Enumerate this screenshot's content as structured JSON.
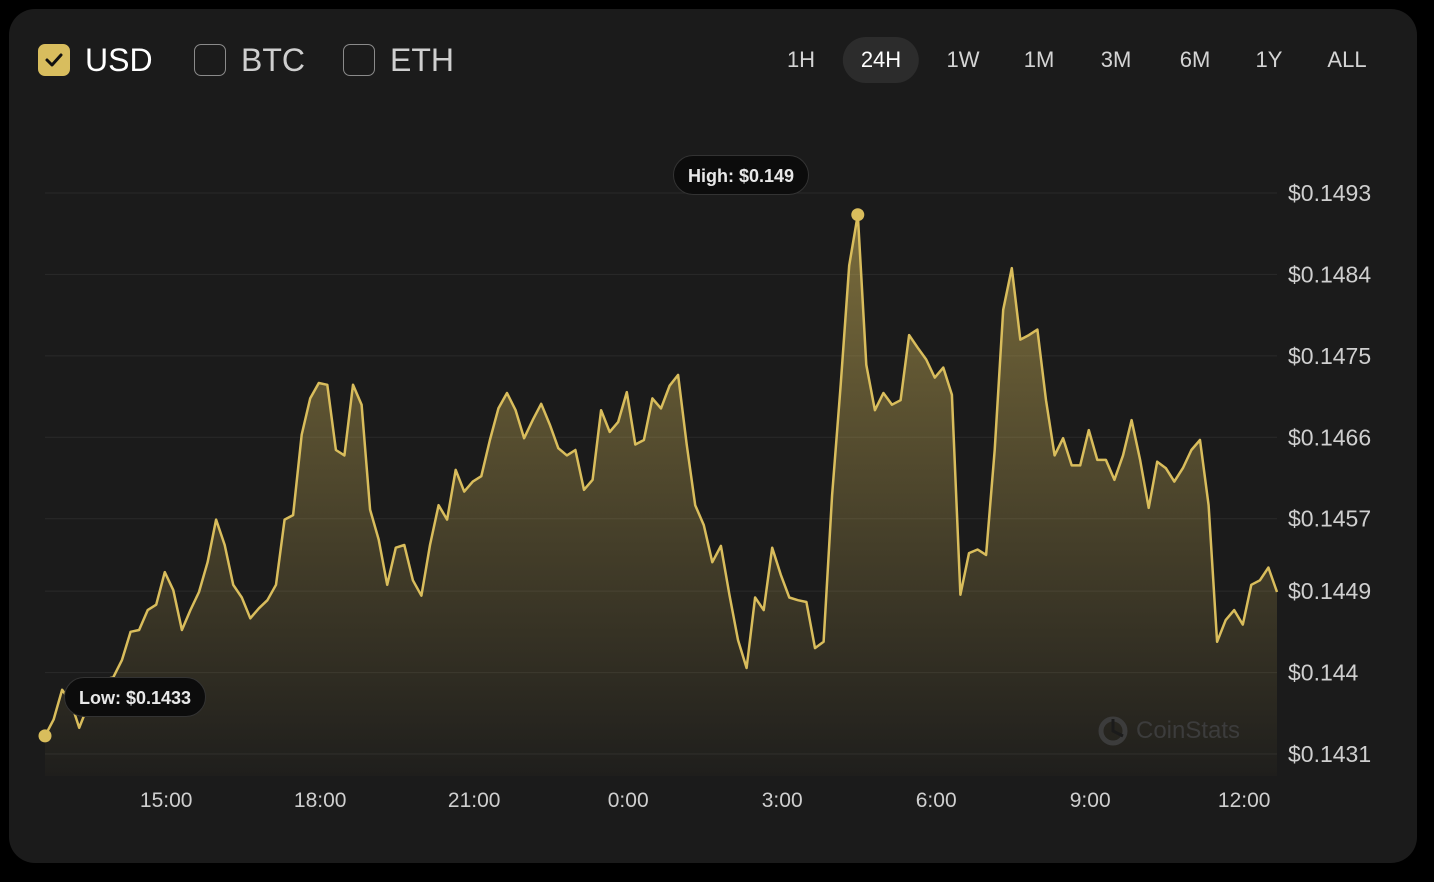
{
  "currencies": [
    {
      "label": "USD",
      "checked": true
    },
    {
      "label": "BTC",
      "checked": false
    },
    {
      "label": "ETH",
      "checked": false
    }
  ],
  "timeframes": [
    {
      "label": "1H"
    },
    {
      "label": "24H",
      "selected": true
    },
    {
      "label": "1W"
    },
    {
      "label": "1M"
    },
    {
      "label": "3M"
    },
    {
      "label": "6M"
    },
    {
      "label": "1Y"
    },
    {
      "label": "ALL"
    }
  ],
  "colors": {
    "line": "#d9bd5c",
    "accent": "#d8bd5e",
    "background": "#1b1b1b"
  },
  "watermark": "CoinStats",
  "chart_data": {
    "type": "area",
    "ylim": [
      0.1431,
      0.1493
    ],
    "y_ticks": [
      "$0.1493",
      "$0.1484",
      "$0.1475",
      "$0.1466",
      "$0.1457",
      "$0.1449",
      "$0.144",
      "$0.1431"
    ],
    "y_tick_values": [
      0.1493,
      0.1484,
      0.1475,
      0.1466,
      0.1457,
      0.1449,
      0.144,
      0.1431
    ],
    "x_ticks": [
      "15:00",
      "18:00",
      "21:00",
      "0:00",
      "3:00",
      "6:00",
      "9:00",
      "12:00"
    ],
    "grid": "horizontal",
    "annotations": {
      "high": {
        "label": "High: $0.149",
        "value": 0.14906
      },
      "low": {
        "label": "Low: $0.1433",
        "value": 0.1433
      }
    },
    "x": [
      "12:36",
      "12:46",
      "12:56",
      "13:06",
      "13:16",
      "13:26",
      "13:36",
      "13:46",
      "13:56",
      "14:06",
      "14:16",
      "14:26",
      "14:36",
      "14:46",
      "14:56",
      "15:06",
      "15:16",
      "15:26",
      "15:36",
      "15:46",
      "15:56",
      "16:06",
      "16:16",
      "16:26",
      "16:36",
      "16:46",
      "16:56",
      "17:06",
      "17:16",
      "17:26",
      "17:36",
      "17:46",
      "17:56",
      "18:06",
      "18:16",
      "18:26",
      "18:36",
      "18:46",
      "18:56",
      "19:06",
      "19:16",
      "19:26",
      "19:36",
      "19:46",
      "19:56",
      "20:06",
      "20:16",
      "20:26",
      "20:36",
      "20:46",
      "20:56",
      "21:06",
      "21:16",
      "21:26",
      "21:36",
      "21:46",
      "21:56",
      "22:06",
      "22:16",
      "22:26",
      "22:36",
      "22:46",
      "22:56",
      "23:06",
      "23:16",
      "23:26",
      "23:36",
      "23:46",
      "23:56",
      "0:06",
      "0:16",
      "0:26",
      "0:36",
      "0:46",
      "0:56",
      "1:06",
      "1:16",
      "1:26",
      "1:36",
      "1:46",
      "1:56",
      "2:06",
      "2:16",
      "2:26",
      "2:36",
      "2:46",
      "2:56",
      "3:06",
      "3:16",
      "3:26",
      "3:36",
      "3:46",
      "3:56",
      "4:06",
      "4:16",
      "4:26",
      "4:36",
      "4:46",
      "4:56",
      "5:06",
      "5:16",
      "5:26",
      "5:36",
      "5:46",
      "5:56",
      "6:06",
      "6:16",
      "6:26",
      "6:36",
      "6:46",
      "6:56",
      "7:06",
      "7:16",
      "7:26",
      "7:36",
      "7:46",
      "7:56",
      "8:06",
      "8:16",
      "8:26",
      "8:36",
      "8:46",
      "8:56",
      "9:06",
      "9:16",
      "9:26",
      "9:36",
      "9:46",
      "9:56",
      "10:06",
      "10:16",
      "10:26",
      "10:36",
      "10:46",
      "10:56",
      "11:06",
      "11:16",
      "11:26",
      "11:36",
      "11:46",
      "11:56",
      "12:06",
      "12:16",
      "12:26",
      "12:36"
    ],
    "series": [
      {
        "values": [
          0.1433,
          0.14348,
          0.14381,
          0.14368,
          0.14339,
          0.14363,
          0.14376,
          0.14392,
          0.14395,
          0.14414,
          0.14445,
          0.14447,
          0.14469,
          0.14475,
          0.14511,
          0.14491,
          0.14447,
          0.14469,
          0.14489,
          0.14522,
          0.14569,
          0.14541,
          0.14497,
          0.14483,
          0.1446,
          0.14471,
          0.1448,
          0.14497,
          0.14569,
          0.14574,
          0.14663,
          0.14703,
          0.1472,
          0.14718,
          0.14646,
          0.1464,
          0.14718,
          0.14696,
          0.1458,
          0.14547,
          0.14497,
          0.14538,
          0.14541,
          0.14502,
          0.14485,
          0.14541,
          0.14585,
          0.14569,
          0.14624,
          0.146,
          0.14611,
          0.14617,
          0.14657,
          0.14692,
          0.14709,
          0.1469,
          0.14659,
          0.14679,
          0.14697,
          0.14674,
          0.14648,
          0.1464,
          0.14646,
          0.14602,
          0.14613,
          0.1469,
          0.14666,
          0.14677,
          0.1471,
          0.14652,
          0.14657,
          0.14703,
          0.14692,
          0.14717,
          0.14729,
          0.14652,
          0.14585,
          0.14563,
          0.14522,
          0.1454,
          0.14486,
          0.14436,
          0.14405,
          0.14483,
          0.14469,
          0.14538,
          0.14508,
          0.14483,
          0.1448,
          0.14478,
          0.14427,
          0.14434,
          0.14596,
          0.14718,
          0.1485,
          0.14906,
          0.1474,
          0.1469,
          0.14709,
          0.14696,
          0.14701,
          0.14773,
          0.14759,
          0.14746,
          0.14726,
          0.14737,
          0.14707,
          0.14486,
          0.14532,
          0.14536,
          0.1453,
          0.14646,
          0.14801,
          0.14847,
          0.14768,
          0.14773,
          0.14779,
          0.14701,
          0.1464,
          0.14659,
          0.14629,
          0.14629,
          0.14668,
          0.14635,
          0.14635,
          0.14613,
          0.1464,
          0.14679,
          0.14635,
          0.14582,
          0.14633,
          0.14626,
          0.14611,
          0.14626,
          0.14646,
          0.14657,
          0.14585,
          0.14434,
          0.14458,
          0.14469,
          0.14453,
          0.14497,
          0.14502,
          0.14516,
          0.14489
        ]
      }
    ]
  }
}
